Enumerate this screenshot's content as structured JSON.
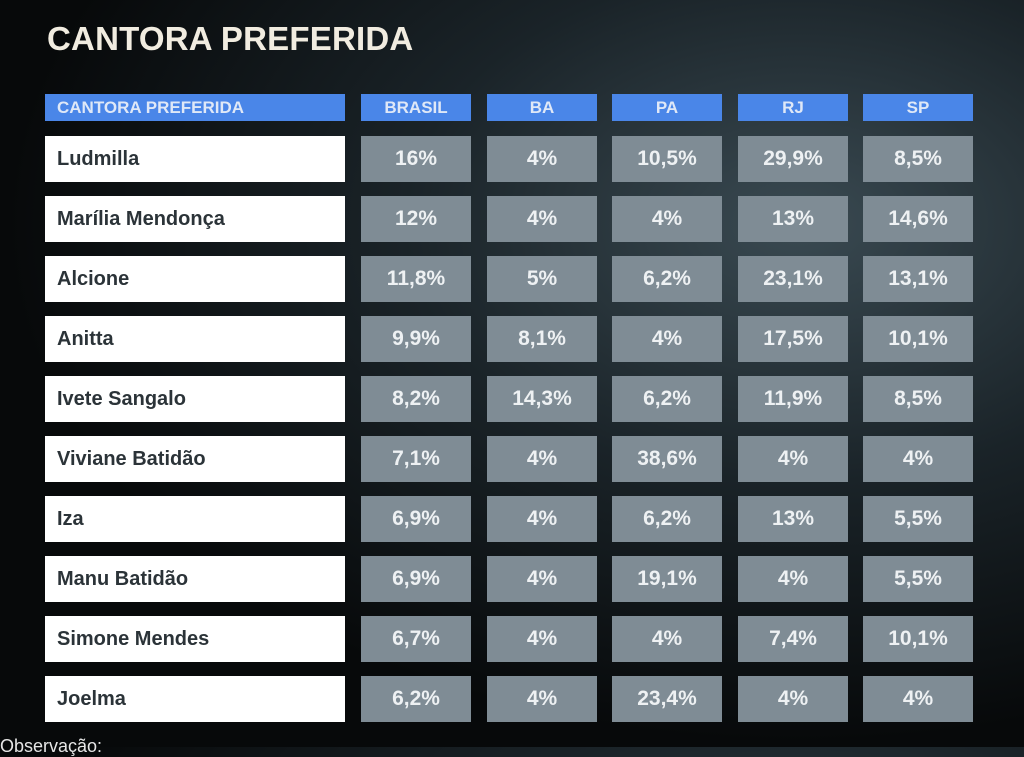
{
  "title": "CANTORA PREFERIDA",
  "headers": [
    "CANTORA PREFERIDA",
    "BRASIL",
    "BA",
    "PA",
    "RJ",
    "SP"
  ],
  "rows": [
    {
      "name": "Ludmilla",
      "values": [
        "16%",
        "4%",
        "10,5%",
        "29,9%",
        "8,5%"
      ]
    },
    {
      "name": "Marília Mendonça",
      "values": [
        "12%",
        "4%",
        "4%",
        "13%",
        "14,6%"
      ]
    },
    {
      "name": "Alcione",
      "values": [
        "11,8%",
        "5%",
        "6,2%",
        "23,1%",
        "13,1%"
      ]
    },
    {
      "name": "Anitta",
      "values": [
        "9,9%",
        "8,1%",
        "4%",
        "17,5%",
        "10,1%"
      ]
    },
    {
      "name": "Ivete Sangalo",
      "values": [
        "8,2%",
        "14,3%",
        "6,2%",
        "11,9%",
        "8,5%"
      ]
    },
    {
      "name": "Viviane Batidão",
      "values": [
        "7,1%",
        "4%",
        "38,6%",
        "4%",
        "4%"
      ]
    },
    {
      "name": "Iza",
      "values": [
        "6,9%",
        "4%",
        "6,2%",
        "13%",
        "5,5%"
      ]
    },
    {
      "name": "Manu Batidão",
      "values": [
        "6,9%",
        "4%",
        "19,1%",
        "4%",
        "5,5%"
      ]
    },
    {
      "name": "Simone Mendes",
      "values": [
        "6,7%",
        "4%",
        "4%",
        "7,4%",
        "10,1%"
      ]
    },
    {
      "name": "Joelma",
      "values": [
        "6,2%",
        "4%",
        "23,4%",
        "4%",
        "4%"
      ]
    }
  ],
  "footer": "Observação:",
  "colors": {
    "header": "#4a86e8",
    "cell": "#7f8c95",
    "name_cell": "#ffffff",
    "title": "#f1ece0"
  }
}
